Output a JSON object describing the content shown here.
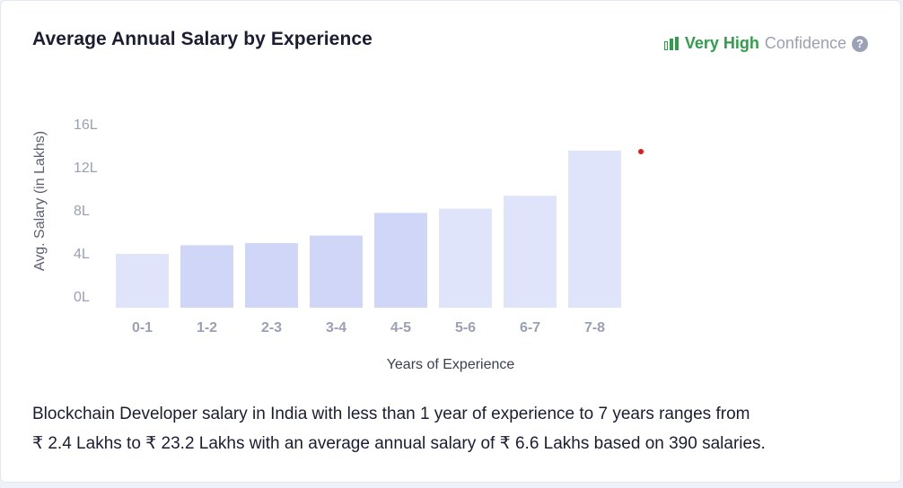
{
  "header": {
    "title": "Average Annual Salary by Experience",
    "confidence_level": "Very High",
    "confidence_label": "Confidence",
    "help_symbol": "?"
  },
  "colors": {
    "title": "#1b1d33",
    "confidence_green": "#2f9d4a",
    "bar_light": "#e0e4fb",
    "bar_dark": "#d0d6f7",
    "axis_text": "#9aa0b5",
    "marker": "#e21b1b"
  },
  "chart_data": {
    "type": "bar",
    "categories": [
      "0-1",
      "1-2",
      "2-3",
      "3-4",
      "4-5",
      "5-6",
      "6-7",
      "7-8"
    ],
    "values": [
      5.0,
      5.8,
      6.0,
      6.7,
      8.8,
      9.2,
      10.4,
      14.6
    ],
    "xlabel": "Years of Experience",
    "ylabel": "Avg. Salary (in Lakhs)",
    "ylim": [
      0,
      16
    ],
    "y_ticks": [
      "0L",
      "4L",
      "8L",
      "12L",
      "16L"
    ],
    "grid": false,
    "legend": "none"
  },
  "description": {
    "line1": "Blockchain Developer salary in India with less than 1 year of experience to 7 years ranges from",
    "line2": "₹ 2.4 Lakhs to ₹ 23.2 Lakhs with an average annual salary of ₹ 6.6 Lakhs based on 390 salaries."
  }
}
